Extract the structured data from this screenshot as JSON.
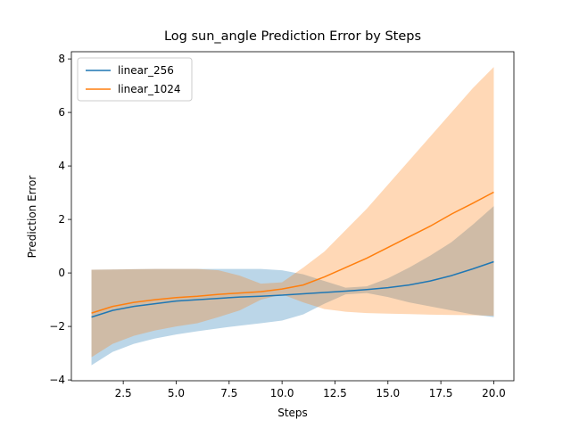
{
  "chart_data": {
    "type": "line",
    "title": "Log sun_angle Prediction Error by Steps",
    "x_label": "Steps",
    "y_label": "Prediction Error",
    "x": [
      1,
      2,
      3,
      4,
      5,
      6,
      7,
      8,
      9,
      10,
      11,
      12,
      13,
      14,
      15,
      16,
      17,
      18,
      19,
      20
    ],
    "series": [
      {
        "name": "linear_256",
        "color": "#1f77b4",
        "values": [
          -1.65,
          -1.4,
          -1.25,
          -1.15,
          -1.05,
          -1.0,
          -0.95,
          -0.9,
          -0.87,
          -0.83,
          -0.78,
          -0.73,
          -0.68,
          -0.62,
          -0.55,
          -0.45,
          -0.3,
          -0.1,
          0.15,
          0.42
        ],
        "upper": [
          0.12,
          0.13,
          0.14,
          0.15,
          0.15,
          0.15,
          0.15,
          0.15,
          0.15,
          0.1,
          -0.05,
          -0.3,
          -0.55,
          -0.5,
          -0.2,
          0.2,
          0.65,
          1.15,
          1.8,
          2.5
        ],
        "lower": [
          -3.45,
          -2.95,
          -2.65,
          -2.45,
          -2.3,
          -2.18,
          -2.07,
          -1.97,
          -1.88,
          -1.78,
          -1.55,
          -1.15,
          -0.8,
          -0.75,
          -0.9,
          -1.1,
          -1.25,
          -1.4,
          -1.55,
          -1.65
        ]
      },
      {
        "name": "linear_1024",
        "color": "#ff7f0e",
        "values": [
          -1.5,
          -1.25,
          -1.1,
          -1.0,
          -0.92,
          -0.87,
          -0.8,
          -0.75,
          -0.7,
          -0.6,
          -0.45,
          -0.15,
          0.2,
          0.55,
          0.95,
          1.35,
          1.75,
          2.2,
          2.6,
          3.02
        ],
        "upper": [
          0.12,
          0.13,
          0.14,
          0.15,
          0.15,
          0.15,
          0.1,
          -0.1,
          -0.4,
          -0.35,
          0.2,
          0.8,
          1.6,
          2.4,
          3.3,
          4.2,
          5.1,
          6.0,
          6.9,
          7.7
        ],
        "lower": [
          -3.15,
          -2.65,
          -2.35,
          -2.15,
          -2.0,
          -1.88,
          -1.65,
          -1.4,
          -1.0,
          -0.8,
          -1.1,
          -1.35,
          -1.45,
          -1.5,
          -1.52,
          -1.54,
          -1.56,
          -1.57,
          -1.58,
          -1.6
        ]
      }
    ],
    "band_opacity": 0.3,
    "xlim": [
      0.05,
      20.95
    ],
    "ylim": [
      -4.03,
      8.27
    ],
    "xticks": [
      2.5,
      {
        "value": 5,
        "label": "5.0"
      },
      7.5,
      {
        "value": 10,
        "label": "10.0"
      },
      12.5,
      {
        "value": 15,
        "label": "15.0"
      },
      17.5,
      {
        "value": 20,
        "label": "20.0"
      }
    ],
    "yticks": [
      {
        "value": -4,
        "label": "−4"
      },
      {
        "value": -2,
        "label": "−2"
      },
      0,
      2,
      4,
      6,
      8
    ],
    "legend": "upper left",
    "grid": false
  }
}
